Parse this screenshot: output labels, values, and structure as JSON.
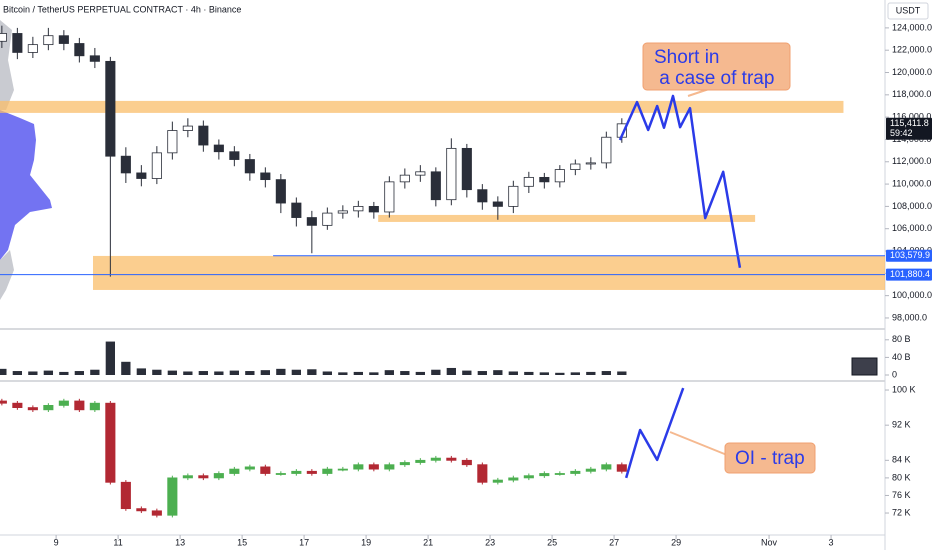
{
  "header": "Bitcoin / TetherUS PERPETUAL CONTRACT · 4h · Binance",
  "chart_data": [
    {
      "type": "candlestick",
      "unit": "USDT",
      "x": [
        7.25,
        7.75,
        8.25,
        8.75,
        9.25,
        9.75,
        10.25,
        10.75,
        11.25,
        11.75,
        12.25,
        12.75,
        13.25,
        13.75,
        14.25,
        14.75,
        15.25,
        15.75,
        16.25,
        16.75,
        17.25,
        17.75,
        18.25,
        18.75,
        19.25,
        19.75,
        20.25,
        20.75,
        21.25,
        21.75,
        22.25,
        22.75,
        23.25,
        23.75,
        24.25,
        24.75,
        25.25,
        25.75,
        26.25,
        26.75,
        27.25
      ],
      "open": [
        122800,
        123500,
        121800,
        122500,
        123300,
        122600,
        121500,
        121000,
        112500,
        111000,
        110500,
        112800,
        114800,
        115200,
        113500,
        112900,
        112200,
        111000,
        110400,
        108300,
        107000,
        106300,
        107400,
        107600,
        108000,
        107500,
        110200,
        110800,
        111100,
        108600,
        113200,
        109500,
        108400,
        108000,
        109800,
        110600,
        110200,
        111300,
        111800,
        111900,
        114200
      ],
      "high": [
        124200,
        124000,
        123200,
        124000,
        123800,
        123100,
        122200,
        121400,
        113300,
        111700,
        113400,
        115600,
        115900,
        115700,
        114000,
        113400,
        112700,
        111500,
        110900,
        108800,
        107600,
        107900,
        108100,
        108500,
        108400,
        110700,
        111400,
        111700,
        111500,
        114100,
        113600,
        110000,
        108900,
        110300,
        111100,
        111000,
        111700,
        112200,
        112400,
        114700,
        115900
      ],
      "low": [
        122200,
        121200,
        121300,
        122000,
        122000,
        120900,
        120400,
        101700,
        110100,
        109800,
        110000,
        112200,
        114200,
        112900,
        112200,
        111600,
        110300,
        109700,
        107400,
        106200,
        103800,
        105900,
        106900,
        107000,
        106900,
        107000,
        109600,
        110200,
        108000,
        108100,
        108800,
        107700,
        106800,
        107400,
        109200,
        109600,
        109700,
        110800,
        111300,
        111400,
        113700
      ],
      "close": [
        123500,
        121800,
        122500,
        123300,
        122600,
        121500,
        121000,
        112500,
        111000,
        110500,
        112800,
        114800,
        115200,
        113500,
        112900,
        112200,
        111000,
        110400,
        108300,
        107000,
        106300,
        107400,
        107600,
        108000,
        107500,
        110200,
        110800,
        111100,
        108600,
        113200,
        109500,
        108400,
        108000,
        109800,
        110600,
        110200,
        111300,
        111800,
        111900,
        114200,
        115400
      ],
      "up_color": "#ffffff",
      "down_color": "#2a2e39",
      "xlim": [
        7.19,
        35.74
      ],
      "xticks": [
        9,
        11,
        13,
        15,
        17,
        19,
        21,
        23,
        25,
        27,
        29,
        {
          "value": 32,
          "label": "Nov"
        },
        {
          "value": 34,
          "label": "3"
        }
      ],
      "ylim": [
        97100,
        126500
      ],
      "yticks": [
        {
          "value": 98000,
          "label": "98,000.0"
        },
        {
          "value": 100000,
          "label": "100,000.0"
        },
        {
          "value": 102000,
          "label": "102,000.0"
        },
        {
          "value": 104000,
          "label": "104,000.0"
        },
        {
          "value": 106000,
          "label": "106,000.0"
        },
        {
          "value": 108000,
          "label": "108,000.0"
        },
        {
          "value": 110000,
          "label": "110,000.0"
        },
        {
          "value": 112000,
          "label": "112,000.0"
        },
        {
          "value": 114000,
          "label": "114,000.0"
        },
        {
          "value": 116000,
          "label": "116,000.0"
        },
        {
          "value": 118000,
          "label": "118,000.0"
        },
        {
          "value": 120000,
          "label": "120,000.0"
        },
        {
          "value": 122000,
          "label": "122,000.0"
        },
        {
          "value": 124000,
          "label": "124,000.0"
        }
      ],
      "zones": [
        {
          "x": [
            7.19,
            34.4
          ],
          "y": [
            116380,
            117456
          ],
          "color": "#f9bd6a"
        },
        {
          "x": [
            19.39,
            31.55
          ],
          "y": [
            106607,
            107235
          ],
          "color": "#f9bd6a"
        },
        {
          "x": [
            10.19,
            35.74
          ],
          "y": [
            100510,
            103560
          ],
          "color": "#f9bd6a"
        }
      ],
      "projection": {
        "x": [
          27.19,
          27.74,
          28.1,
          28.39,
          28.61,
          28.9,
          29.13,
          29.45,
          29.94,
          30.52,
          31.06
        ],
        "y": [
          113950,
          117350,
          114850,
          117000,
          115050,
          117900,
          115100,
          116800,
          106950,
          111100,
          102500
        ],
        "color": "#2b3be8"
      },
      "price_labels": [
        {
          "value": 115411.8,
          "label": "115,411.8",
          "sub": "59:42",
          "color": "#131722"
        },
        {
          "value": 103579.9,
          "label": "103,579.9",
          "color": "#2962ff",
          "line_x": [
            16.0,
            35.74
          ]
        },
        {
          "value": 101880.4,
          "label": "101,880.4",
          "color": "#2962ff",
          "line_x": [
            7.19,
            35.74
          ]
        }
      ],
      "annotation": [
        "Short in",
        " a case of trap"
      ]
    },
    {
      "type": "bar",
      "color": "#2a2e39",
      "values": [
        14,
        9,
        8,
        10,
        7,
        9,
        12,
        76,
        30,
        15,
        12,
        10,
        8,
        9,
        8,
        10,
        9,
        11,
        14,
        12,
        13,
        8,
        6,
        7,
        6,
        11,
        9,
        7,
        12,
        16,
        10,
        9,
        11,
        8,
        7,
        6,
        5,
        6,
        7,
        9,
        8
      ],
      "ylim": [
        0,
        100
      ],
      "yticks": [
        0,
        {
          "value": 40,
          "label": "40 B"
        },
        {
          "value": 80,
          "label": "80 B"
        }
      ]
    },
    {
      "type": "candlestick",
      "open": [
        97.5,
        97.0,
        96.0,
        95.5,
        96.5,
        97.5,
        95.5,
        97.0,
        79.0,
        73.0,
        72.5,
        71.5,
        80.0,
        80.5,
        80.0,
        81.0,
        82.0,
        82.5,
        81.0,
        81.0,
        81.5,
        81.0,
        82.0,
        82.0,
        83.0,
        82.0,
        83.0,
        83.5,
        84.0,
        84.5,
        84.0,
        83.0,
        79.0,
        79.5,
        80.0,
        80.5,
        81.0,
        81.0,
        81.5,
        82.0,
        83.0
      ],
      "high": [
        98,
        97.5,
        96.5,
        97,
        98,
        98,
        97.5,
        97.5,
        79.5,
        73.5,
        73,
        80.5,
        81,
        81,
        81.5,
        82.5,
        83,
        83,
        81.5,
        82,
        82,
        82.5,
        82.5,
        83.5,
        83.5,
        83.5,
        84,
        84.5,
        85,
        85,
        84.5,
        83.5,
        80,
        80.5,
        81,
        81.5,
        81.5,
        82,
        82.5,
        83.5,
        83.5
      ],
      "low": [
        96.5,
        95.5,
        95,
        95,
        96,
        95,
        95,
        78.5,
        72.5,
        72,
        71,
        71,
        79.5,
        79.5,
        79.5,
        80.5,
        81.5,
        80.5,
        80.5,
        80.5,
        80.5,
        80.5,
        81.5,
        81.5,
        81.5,
        81.5,
        82.5,
        83,
        83.5,
        83.5,
        82.5,
        78.5,
        78.5,
        79,
        79.5,
        80,
        80.5,
        80.5,
        81,
        81.5,
        81
      ],
      "close": [
        97.0,
        96.0,
        95.5,
        96.5,
        97.5,
        95.5,
        97.0,
        79.0,
        73.0,
        72.5,
        71.5,
        80.0,
        80.5,
        80.0,
        81.0,
        82.0,
        82.5,
        81.0,
        81.0,
        81.5,
        81.0,
        82.0,
        82.0,
        83.0,
        82.0,
        83.0,
        83.5,
        84.0,
        84.5,
        84.0,
        83.0,
        79.0,
        79.5,
        80.0,
        80.5,
        81.0,
        81.0,
        81.5,
        82.0,
        83.0,
        81.5
      ],
      "up_color": "#4caf50",
      "down_color": "#b22833",
      "ylim": [
        67,
        101.6
      ],
      "yticks": [
        {
          "value": 72,
          "label": "72 K"
        },
        {
          "value": 76,
          "label": "76 K"
        },
        {
          "value": 80,
          "label": "80 K"
        },
        {
          "value": 84,
          "label": "84 K"
        },
        {
          "value": 92,
          "label": "92 K"
        },
        {
          "value": 100,
          "label": "100 K"
        }
      ],
      "projection": {
        "x": [
          27.39,
          27.84,
          28.39,
          29.23
        ],
        "y": [
          80,
          90.9,
          84.1,
          100.45
        ],
        "color": "#2b3be8"
      },
      "annotation": "OI - trap"
    }
  ]
}
